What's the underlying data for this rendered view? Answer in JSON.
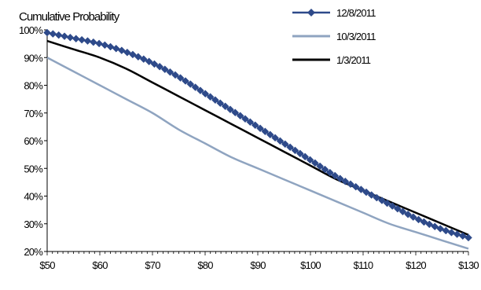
{
  "chart_data": {
    "type": "line",
    "title": "Cumulative Probability",
    "xlabel": "",
    "ylabel": "",
    "x_ticks": [
      "$50",
      "$60",
      "$70",
      "$80",
      "$90",
      "$100",
      "$110",
      "$120",
      "$130"
    ],
    "y_ticks": [
      "20%",
      "30%",
      "40%",
      "50%",
      "60%",
      "70%",
      "80%",
      "90%",
      "100%"
    ],
    "xlim": [
      50,
      130
    ],
    "ylim": [
      20,
      100
    ],
    "grid": false,
    "legend_position": "top-right",
    "series": [
      {
        "name": "12/8/2011",
        "color": "#2e4a8a",
        "marker": "diamond",
        "x": [
          50,
          55,
          60,
          65,
          70,
          75,
          80,
          85,
          90,
          95,
          100,
          105,
          110,
          115,
          120,
          125,
          130
        ],
        "y": [
          99,
          97,
          95,
          92,
          88,
          83,
          77,
          71,
          65,
          59,
          53,
          47,
          42,
          37,
          32,
          28,
          25
        ]
      },
      {
        "name": "10/3/2011",
        "color": "#8fa4c0",
        "marker": "none",
        "x": [
          50,
          55,
          60,
          65,
          70,
          75,
          80,
          85,
          90,
          95,
          100,
          105,
          110,
          115,
          120,
          125,
          130
        ],
        "y": [
          90,
          85,
          80,
          75,
          70,
          64,
          59,
          54,
          50,
          46,
          42,
          38,
          34,
          30,
          27,
          24,
          21
        ]
      },
      {
        "name": "1/3/2011",
        "color": "#000000",
        "marker": "none",
        "x": [
          50,
          55,
          60,
          65,
          70,
          75,
          80,
          85,
          90,
          95,
          100,
          105,
          110,
          115,
          120,
          125,
          130
        ],
        "y": [
          96,
          93,
          90,
          86,
          81,
          76,
          71,
          66,
          61,
          56,
          51,
          46,
          42,
          38,
          34,
          30,
          26
        ]
      }
    ]
  }
}
